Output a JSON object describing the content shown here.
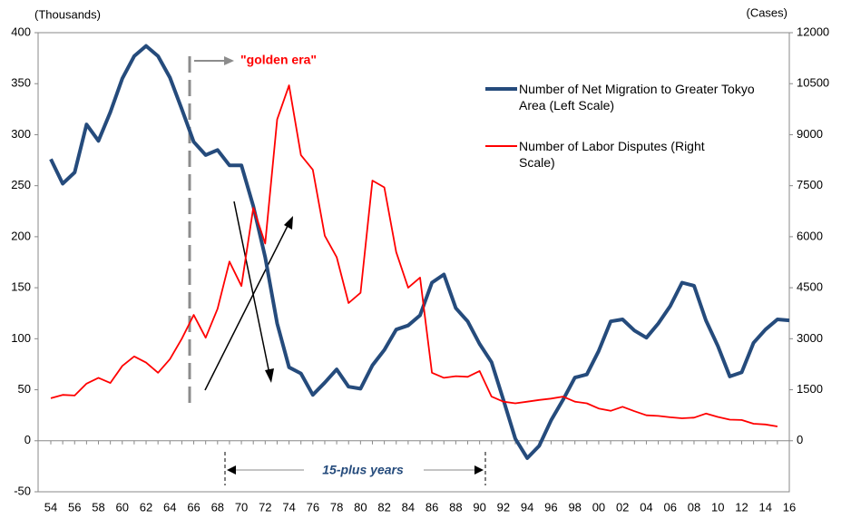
{
  "chart_data": {
    "type": "line",
    "y_label": "(Thousands)",
    "y2_label": "(Cases)",
    "annotations": [
      "\"golden era\"",
      "15-plus years"
    ],
    "categories": [
      "54",
      null,
      "56",
      null,
      "58",
      null,
      "60",
      null,
      "62",
      null,
      "64",
      null,
      "66",
      null,
      "68",
      null,
      "70",
      null,
      "72",
      null,
      "74",
      null,
      "76",
      null,
      "78",
      null,
      "80",
      null,
      "82",
      null,
      "84",
      null,
      "86",
      null,
      "88",
      null,
      "90",
      null,
      "92",
      null,
      "94",
      null,
      "96",
      null,
      "98",
      null,
      "00",
      null,
      "02",
      null,
      "04",
      null,
      "06",
      null,
      "08",
      null,
      "10",
      null,
      "12",
      null,
      "14",
      null,
      "16"
    ],
    "series": [
      {
        "name": "Number of Net Migration to Greater Tokyo Area (Left Scale)",
        "color": "#254b7c",
        "values": [
          276,
          252,
          263,
          310,
          294,
          322,
          355,
          377,
          387,
          377,
          356,
          325,
          293,
          280,
          285,
          270,
          270,
          230,
          180,
          115,
          72,
          66,
          45,
          57,
          70,
          53,
          51,
          74,
          89,
          109,
          113,
          123,
          155,
          163,
          130,
          117,
          95,
          77,
          40,
          2,
          -17,
          -5,
          20,
          40,
          62,
          65,
          88,
          117,
          119,
          108,
          101,
          115,
          132,
          155,
          152,
          118,
          93,
          63,
          67,
          96,
          109,
          119,
          118
        ]
      },
      {
        "name": "Number of Labor Disputes (Right Scale)",
        "color": "#ff0000",
        "axis": "y2",
        "values": [
          1250,
          1350,
          1330,
          1680,
          1850,
          1700,
          2200,
          2480,
          2300,
          2000,
          2400,
          3000,
          3700,
          3030,
          3880,
          5270,
          4550,
          6850,
          5800,
          9450,
          10450,
          8400,
          7970,
          6030,
          5400,
          4050,
          4350,
          7650,
          7450,
          5550,
          4500,
          4800,
          2000,
          1850,
          1900,
          1880,
          2050,
          1300,
          1150,
          1100,
          1150,
          1200,
          1240,
          1300,
          1150,
          1100,
          950,
          880,
          1000,
          870,
          750,
          730,
          690,
          660,
          680,
          800,
          700,
          620,
          610,
          500,
          480,
          420,
          null
        ]
      }
    ],
    "ylim": [
      -50,
      400
    ],
    "yticks": [
      -50,
      0,
      50,
      100,
      150,
      200,
      250,
      300,
      350,
      400
    ],
    "y2lim": [
      -1500,
      12000
    ],
    "y2ticks": [
      0,
      1500,
      3000,
      4500,
      6000,
      7500,
      9000,
      10500,
      12000
    ]
  }
}
